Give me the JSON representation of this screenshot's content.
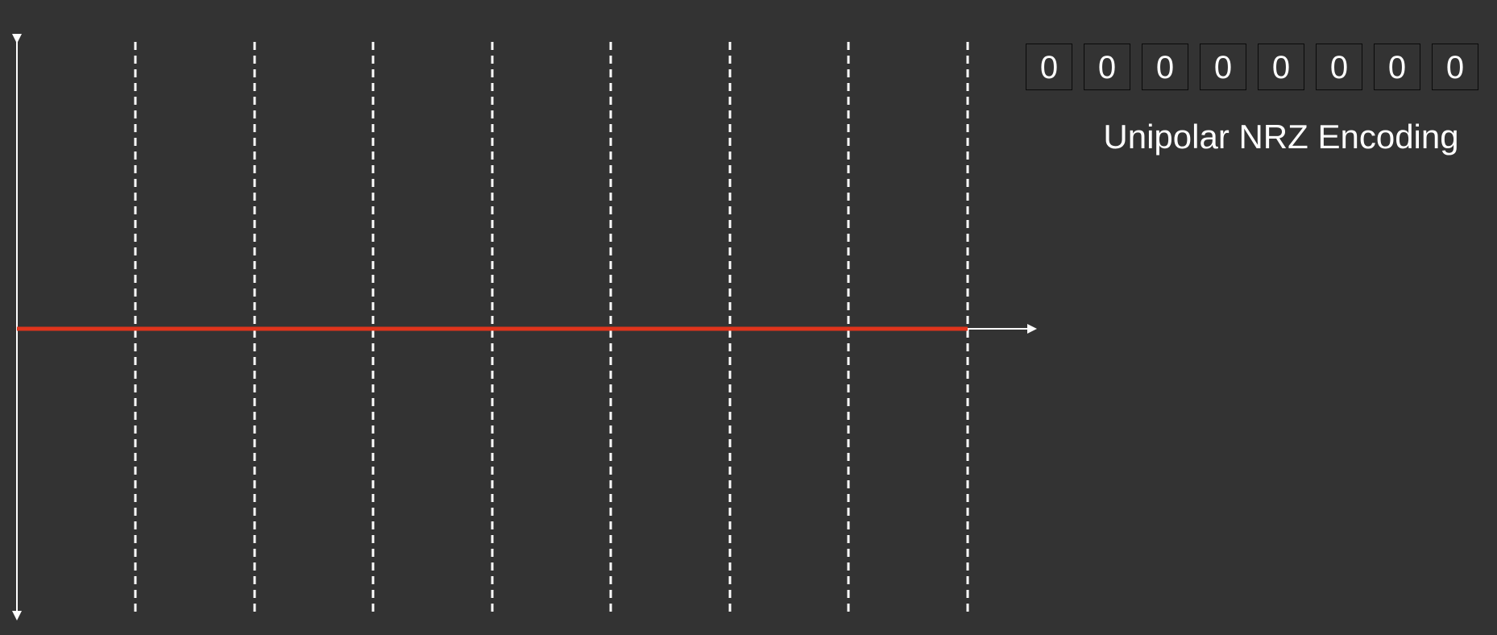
{
  "bits": [
    "0",
    "0",
    "0",
    "0",
    "0",
    "0",
    "0",
    "0"
  ],
  "title": "Unipolar NRZ Encoding",
  "signal": {
    "levels": [
      0,
      0,
      0,
      0,
      0,
      0,
      0,
      0
    ]
  },
  "colors": {
    "background": "#333333",
    "axis": "#ffffff",
    "gridline": "#ffffff",
    "signal": "#e0341c",
    "bit_box_border": "#0a0a0a",
    "text": "#ffffff"
  }
}
